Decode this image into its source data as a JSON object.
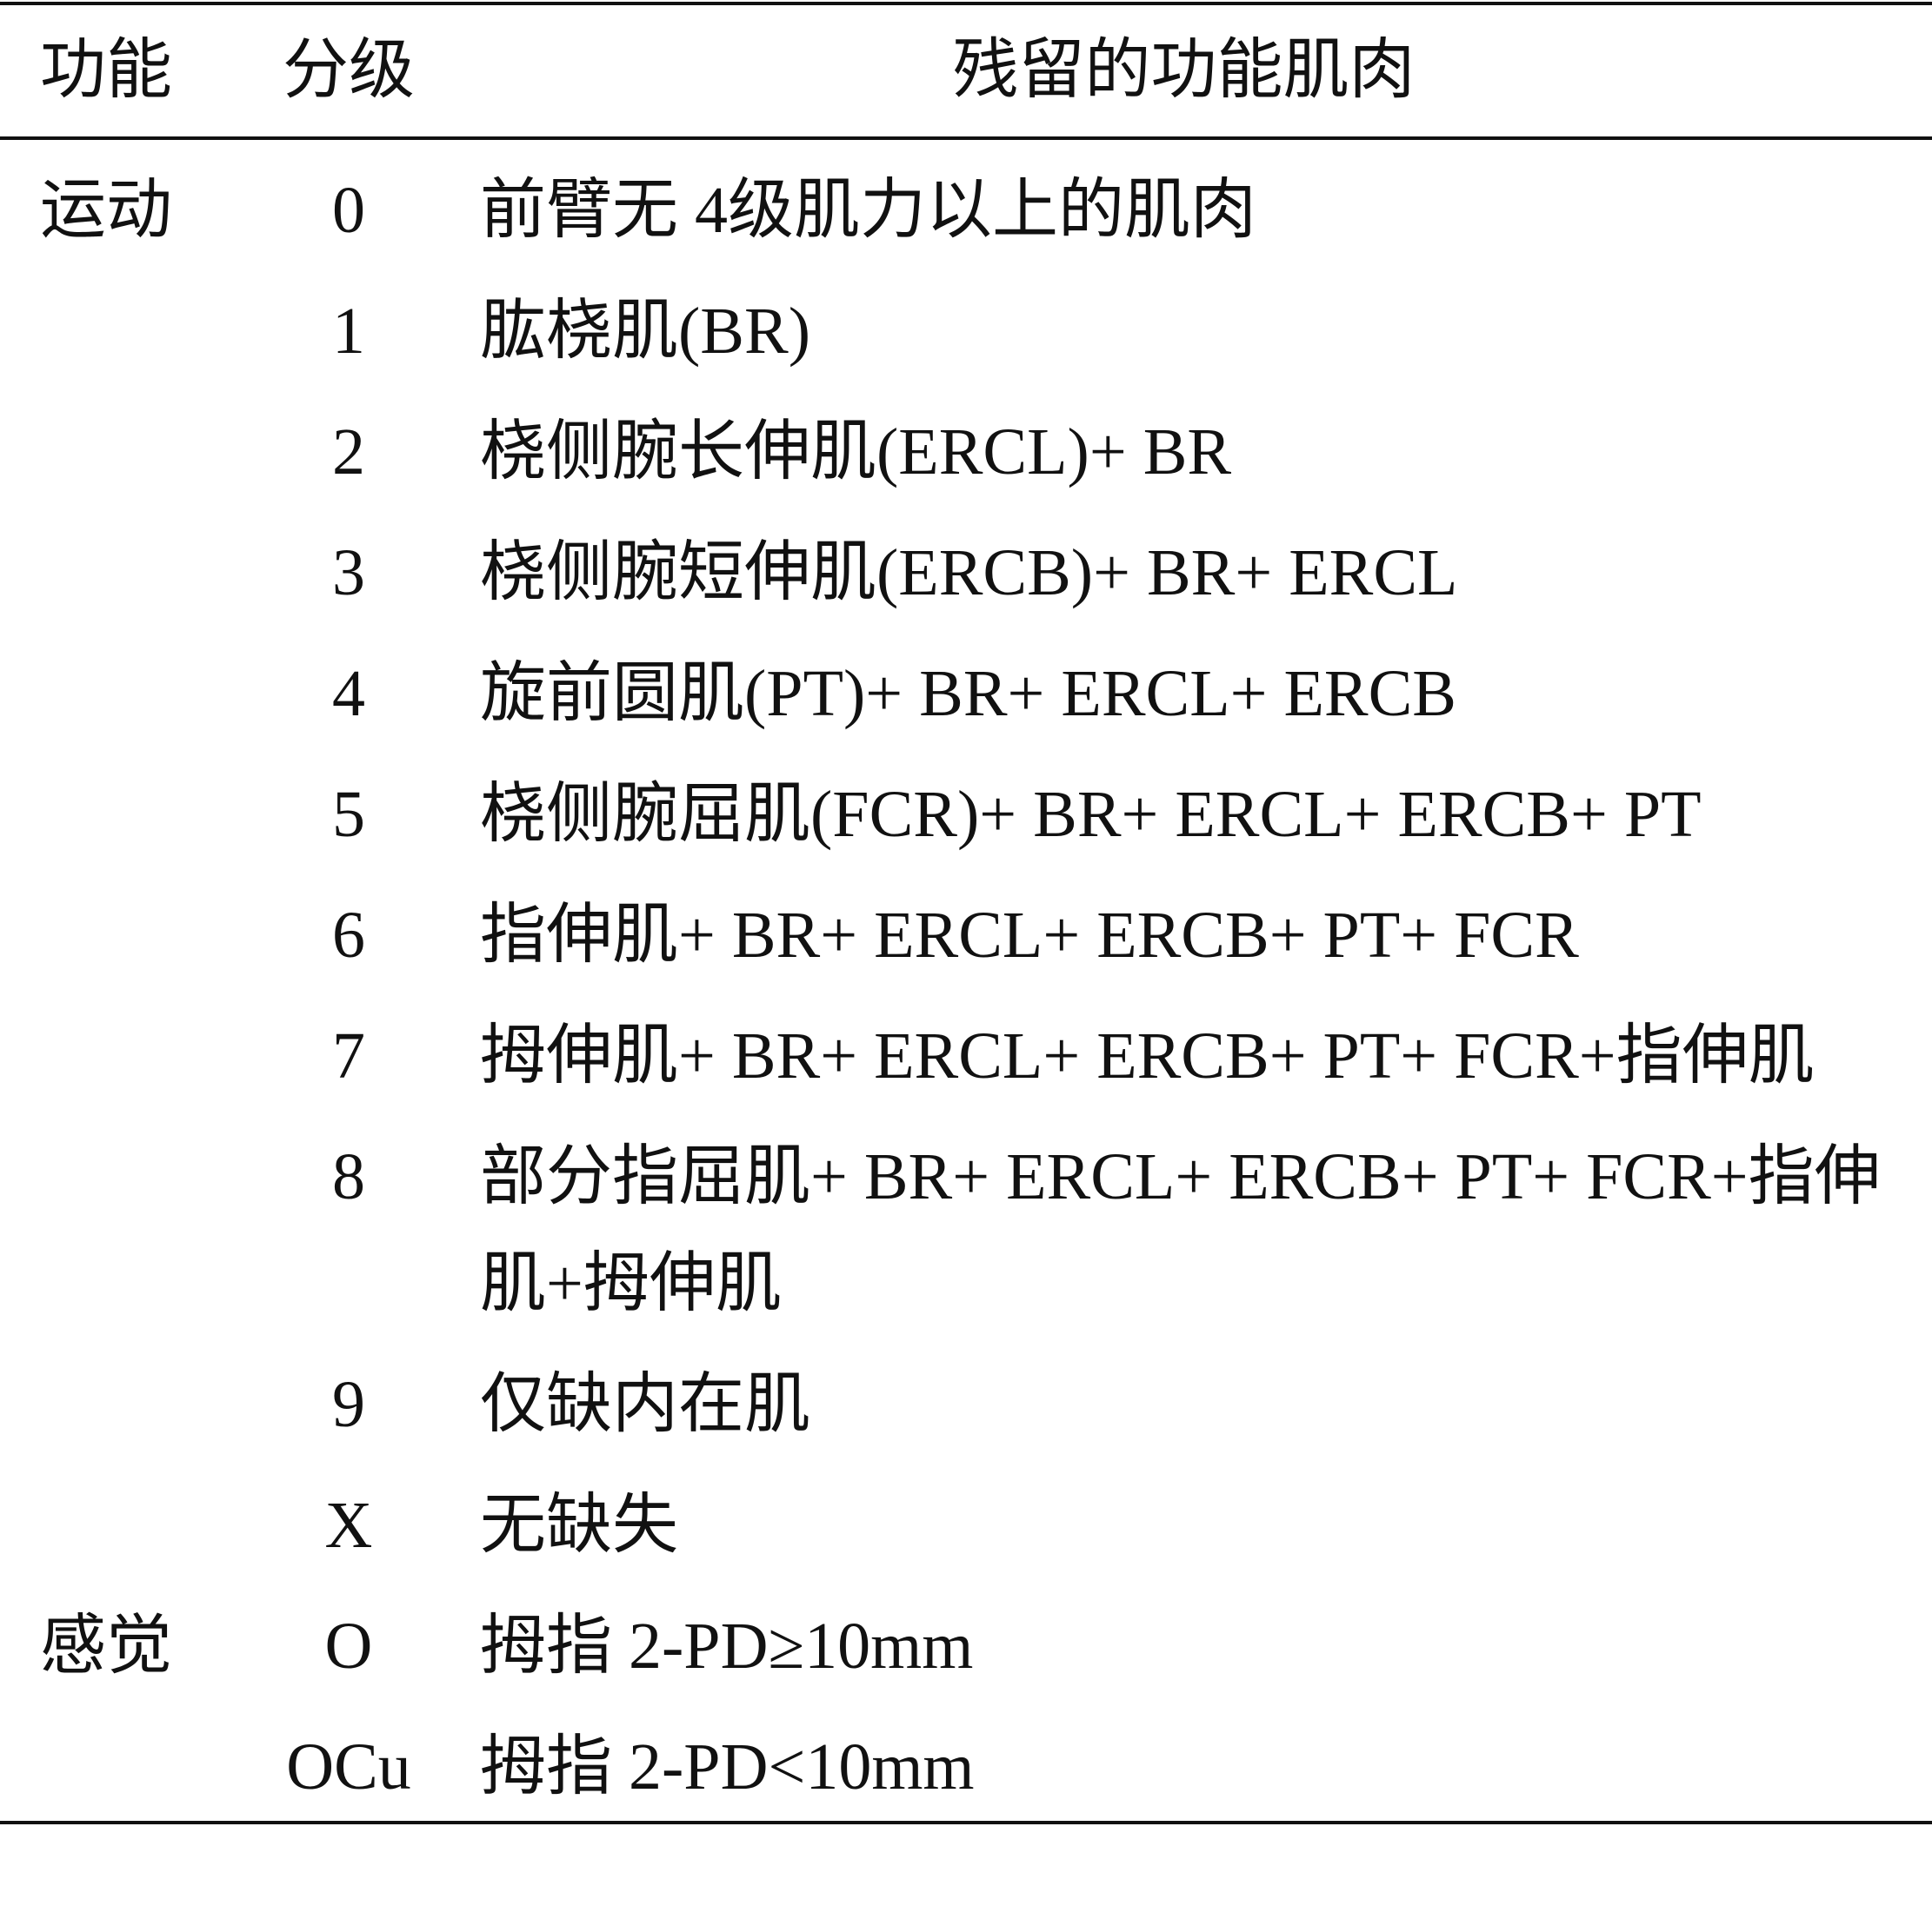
{
  "header": [
    "功能",
    "分级",
    "残留的功能肌肉"
  ],
  "rows": [
    {
      "function": "运动",
      "grade": "0",
      "muscles": "前臂无 4级肌力以上的肌肉"
    },
    {
      "grade": "1",
      "muscles": "肱桡肌(BR)"
    },
    {
      "grade": "2",
      "muscles": "桡侧腕长伸肌(ERCL)+ BR"
    },
    {
      "grade": "3",
      "muscles": "桡侧腕短伸肌(ERCB)+ BR+ ERCL"
    },
    {
      "grade": "4",
      "muscles": "旋前圆肌(PT)+ BR+ ERCL+ ERCB"
    },
    {
      "grade": "5",
      "muscles": "桡侧腕屈肌(FCR)+ BR+ ERCL+ ERCB+ PT"
    },
    {
      "grade": "6",
      "muscles": "指伸肌+ BR+ ERCL+ ERCB+ PT+ FCR"
    },
    {
      "grade": "7",
      "muscles": "拇伸肌+ BR+ ERCL+ ERCB+ PT+ FCR+指伸肌"
    },
    {
      "grade": "8",
      "muscles": "部分指屈肌+ BR+ ERCL+ ERCB+ PT+ FCR+指伸肌+拇伸肌"
    },
    {
      "grade": "9",
      "muscles": "仅缺内在肌"
    },
    {
      "grade": "X",
      "muscles": "无缺失"
    },
    {
      "function": "感觉",
      "grade": "O",
      "muscles": "拇指 2-PD≥10mm"
    },
    {
      "grade": "OCu",
      "muscles": "拇指 2-PD<10mm"
    }
  ]
}
